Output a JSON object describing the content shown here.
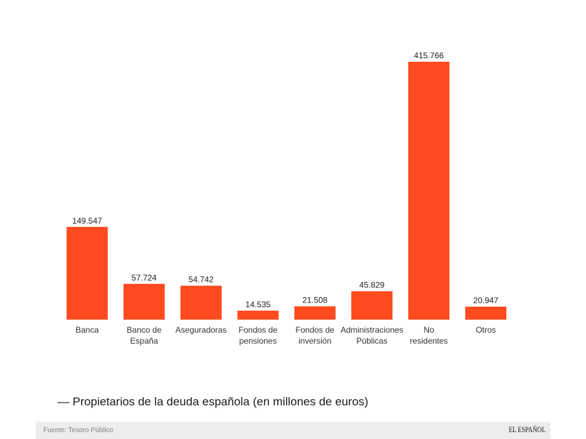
{
  "chart_data": {
    "type": "bar",
    "title": "— Propietarios de la deuda española (en millones de euros)",
    "xlabel": "",
    "ylabel": "",
    "categories": [
      "Banca",
      "Banco de España",
      "Aseguradoras",
      "Fondos de pensiones",
      "Fondos de inversión",
      "Administraciones Públicas",
      "No residentes",
      "Otros"
    ],
    "values": [
      149547,
      57724,
      54742,
      14535,
      21508,
      45829,
      415766,
      20947
    ],
    "value_labels": [
      "149.547",
      "57.724",
      "54.742",
      "14.535",
      "21.508",
      "45.829",
      "415.766",
      "20.947"
    ],
    "grid": false,
    "legend": "none",
    "color": "#FF4B1F"
  },
  "footer": {
    "source": "Fuente: Tesoro Público",
    "brand": "EL ESPAÑOL"
  }
}
